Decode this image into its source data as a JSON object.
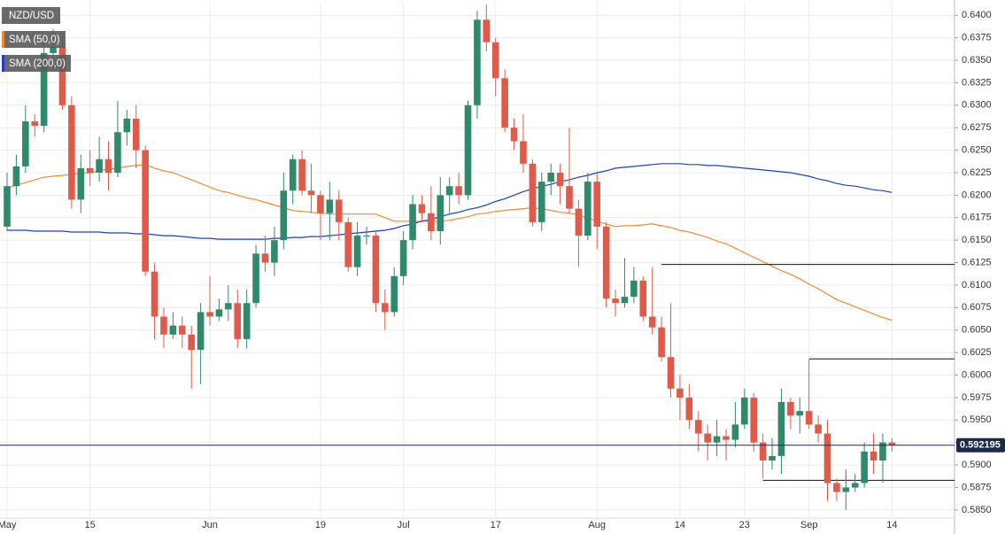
{
  "chart_data": {
    "type": "candlestick",
    "symbol": "NZD/USD",
    "categories": [
      "May",
      null,
      null,
      null,
      null,
      null,
      null,
      null,
      null,
      "15",
      null,
      null,
      null,
      null,
      null,
      null,
      null,
      null,
      null,
      null,
      null,
      null,
      "Jun",
      null,
      null,
      null,
      null,
      null,
      null,
      null,
      null,
      null,
      null,
      null,
      "19",
      null,
      null,
      null,
      null,
      null,
      null,
      null,
      null,
      "Jul",
      null,
      null,
      null,
      null,
      null,
      null,
      null,
      null,
      null,
      "17",
      null,
      null,
      null,
      null,
      null,
      null,
      null,
      null,
      null,
      null,
      "Aug",
      null,
      null,
      null,
      null,
      null,
      null,
      null,
      null,
      "14",
      null,
      null,
      null,
      null,
      null,
      null,
      "23",
      null,
      null,
      null,
      null,
      null,
      null,
      "Sep",
      null,
      null,
      null,
      null,
      null,
      null,
      null,
      null,
      "14"
    ],
    "open": [
      0.6165,
      0.621,
      0.6232,
      0.6282,
      0.6277,
      0.6358,
      0.6365,
      0.63,
      0.6195,
      0.623,
      0.6225,
      0.624,
      0.6225,
      0.627,
      0.6285,
      0.625,
      0.6115,
      0.6065,
      0.6045,
      0.6055,
      0.6045,
      0.6028,
      0.607,
      0.6065,
      0.6073,
      0.608,
      0.604,
      0.608,
      0.6135,
      0.6125,
      0.615,
      0.6205,
      0.624,
      0.6205,
      0.62,
      0.618,
      0.6195,
      0.617,
      0.612,
      0.6155,
      0.6155,
      0.608,
      0.607,
      0.611,
      0.615,
      0.619,
      0.618,
      0.616,
      0.62,
      0.621,
      0.62,
      0.63,
      0.6395,
      0.637,
      0.633,
      0.6275,
      0.626,
      0.6235,
      0.617,
      0.6215,
      0.6225,
      0.621,
      0.6185,
      0.6155,
      0.6215,
      0.6165,
      0.6085,
      0.608,
      0.6087,
      0.6105,
      0.6065,
      0.6053,
      0.602,
      0.5985,
      0.5975,
      0.595,
      0.5935,
      0.5925,
      0.5932,
      0.5928,
      0.5945,
      0.5975,
      0.5925,
      0.5905,
      0.591,
      0.597,
      0.5955,
      0.596,
      0.5945,
      0.5935,
      0.588,
      0.587,
      0.5875,
      0.588,
      0.5915,
      0.5905,
      0.5925
    ],
    "high": [
      0.6225,
      0.6245,
      0.63,
      0.629,
      0.637,
      0.6385,
      0.638,
      0.631,
      0.6245,
      0.625,
      0.6265,
      0.626,
      0.6305,
      0.6295,
      0.63,
      0.6255,
      0.6125,
      0.6075,
      0.607,
      0.6065,
      0.6055,
      0.608,
      0.611,
      0.6085,
      0.61,
      0.6095,
      0.6095,
      0.6145,
      0.6155,
      0.6165,
      0.6225,
      0.6245,
      0.625,
      0.6235,
      0.6205,
      0.6215,
      0.6205,
      0.6175,
      0.617,
      0.6165,
      0.616,
      0.6095,
      0.612,
      0.616,
      0.62,
      0.62,
      0.621,
      0.622,
      0.622,
      0.6225,
      0.6305,
      0.6405,
      0.6412,
      0.6375,
      0.634,
      0.6285,
      0.629,
      0.624,
      0.6225,
      0.6235,
      0.6235,
      0.6275,
      0.6195,
      0.6225,
      0.6225,
      0.617,
      0.6095,
      0.613,
      0.612,
      0.611,
      0.612,
      0.6065,
      0.608,
      0.6,
      0.599,
      0.596,
      0.5945,
      0.595,
      0.594,
      0.597,
      0.5985,
      0.598,
      0.5935,
      0.593,
      0.5985,
      0.5975,
      0.5975,
      0.6017,
      0.5955,
      0.595,
      0.5885,
      0.5895,
      0.589,
      0.5925,
      0.5935,
      0.5935,
      0.593
    ],
    "low": [
      0.616,
      0.62,
      0.6225,
      0.6265,
      0.627,
      0.634,
      0.6295,
      0.6185,
      0.618,
      0.621,
      0.6215,
      0.6205,
      0.622,
      0.6255,
      0.623,
      0.611,
      0.604,
      0.603,
      0.604,
      0.603,
      0.5985,
      0.599,
      0.6055,
      0.606,
      0.606,
      0.603,
      0.603,
      0.6075,
      0.6115,
      0.611,
      0.614,
      0.619,
      0.62,
      0.618,
      0.615,
      0.615,
      0.615,
      0.6115,
      0.611,
      0.6145,
      0.607,
      0.605,
      0.6065,
      0.61,
      0.614,
      0.617,
      0.615,
      0.6145,
      0.618,
      0.619,
      0.6195,
      0.6285,
      0.636,
      0.631,
      0.627,
      0.625,
      0.6225,
      0.6165,
      0.616,
      0.62,
      0.619,
      0.618,
      0.612,
      0.615,
      0.614,
      0.6075,
      0.6065,
      0.6075,
      0.608,
      0.606,
      0.6045,
      0.6015,
      0.5975,
      0.595,
      0.594,
      0.5915,
      0.5905,
      0.591,
      0.5905,
      0.592,
      0.594,
      0.5915,
      0.5885,
      0.5895,
      0.589,
      0.594,
      0.5935,
      0.594,
      0.5925,
      0.586,
      0.586,
      0.585,
      0.587,
      0.5875,
      0.589,
      0.588,
      0.5915
    ],
    "close": [
      0.621,
      0.6232,
      0.6282,
      0.6277,
      0.6358,
      0.6365,
      0.63,
      0.6195,
      0.623,
      0.6225,
      0.624,
      0.6225,
      0.627,
      0.6285,
      0.625,
      0.6115,
      0.6065,
      0.6045,
      0.6055,
      0.6045,
      0.6028,
      0.607,
      0.6065,
      0.6073,
      0.608,
      0.604,
      0.608,
      0.6135,
      0.6125,
      0.615,
      0.6205,
      0.624,
      0.6205,
      0.62,
      0.618,
      0.6195,
      0.617,
      0.612,
      0.6155,
      0.6155,
      0.608,
      0.607,
      0.611,
      0.615,
      0.619,
      0.618,
      0.616,
      0.62,
      0.621,
      0.62,
      0.63,
      0.6395,
      0.637,
      0.633,
      0.6275,
      0.626,
      0.6235,
      0.617,
      0.6215,
      0.6225,
      0.621,
      0.6185,
      0.6155,
      0.6215,
      0.6165,
      0.6085,
      0.608,
      0.6087,
      0.6105,
      0.6065,
      0.6053,
      0.602,
      0.5985,
      0.5975,
      0.595,
      0.5935,
      0.5925,
      0.5932,
      0.5928,
      0.5945,
      0.5975,
      0.5925,
      0.5905,
      0.591,
      0.597,
      0.5955,
      0.596,
      0.5945,
      0.5935,
      0.588,
      0.587,
      0.5875,
      0.588,
      0.5915,
      0.5905,
      0.5925,
      0.592195
    ],
    "up_color": "#2f8a6c",
    "down_color": "#e05a4a",
    "series": [
      {
        "name": "SMA (50,0)",
        "color": "#f08c30",
        "values": [
          0.6208,
          0.6211,
          0.6214,
          0.6217,
          0.622,
          0.6221,
          0.6222,
          0.6223,
          0.6224,
          0.6225,
          0.6227,
          0.6229,
          0.623,
          0.6232,
          0.6233,
          0.6234,
          0.623,
          0.6227,
          0.6225,
          0.6221,
          0.6217,
          0.6213,
          0.6209,
          0.6205,
          0.6203,
          0.62,
          0.6197,
          0.6195,
          0.6192,
          0.6189,
          0.6186,
          0.6183,
          0.6182,
          0.6181,
          0.618,
          0.6179,
          0.6179,
          0.6179,
          0.6179,
          0.6179,
          0.6179,
          0.6175,
          0.6171,
          0.6171,
          0.6171,
          0.6171,
          0.6171,
          0.6171,
          0.6172,
          0.6174,
          0.6176,
          0.6179,
          0.618,
          0.6182,
          0.6183,
          0.6184,
          0.6185,
          0.6186,
          0.6185,
          0.6183,
          0.6181,
          0.618,
          0.6178,
          0.6175,
          0.6171,
          0.6168,
          0.6165,
          0.6166,
          0.6166,
          0.6167,
          0.6168,
          0.6166,
          0.6164,
          0.6161,
          0.6159,
          0.6156,
          0.6153,
          0.6149,
          0.6146,
          0.6141,
          0.6136,
          0.6131,
          0.6126,
          0.6121,
          0.6116,
          0.6112,
          0.6107,
          0.6101,
          0.6096,
          0.609,
          0.6084,
          0.608,
          0.6076,
          0.6072,
          0.6068,
          0.6064,
          0.6061
        ]
      },
      {
        "name": "SMA (200,0)",
        "color": "#1e3fc8",
        "values": [
          0.6161,
          0.6161,
          0.6161,
          0.616,
          0.616,
          0.616,
          0.616,
          0.6159,
          0.6159,
          0.6159,
          0.6159,
          0.6158,
          0.6158,
          0.6158,
          0.6157,
          0.6157,
          0.6156,
          0.6155,
          0.6155,
          0.6154,
          0.6153,
          0.6152,
          0.6152,
          0.6151,
          0.6151,
          0.6151,
          0.6151,
          0.6151,
          0.6151,
          0.6152,
          0.6152,
          0.6153,
          0.6153,
          0.6154,
          0.6154,
          0.6155,
          0.6156,
          0.6157,
          0.6158,
          0.6159,
          0.616,
          0.6161,
          0.6163,
          0.6166,
          0.6168,
          0.6171,
          0.6173,
          0.6176,
          0.6179,
          0.6181,
          0.6184,
          0.6186,
          0.6189,
          0.6193,
          0.6196,
          0.62,
          0.6204,
          0.6207,
          0.621,
          0.6212,
          0.6215,
          0.6217,
          0.622,
          0.6222,
          0.6225,
          0.6227,
          0.623,
          0.6231,
          0.6232,
          0.6233,
          0.6234,
          0.6235,
          0.6235,
          0.6235,
          0.6234,
          0.6234,
          0.6233,
          0.6233,
          0.6232,
          0.6231,
          0.623,
          0.6229,
          0.6228,
          0.6227,
          0.6226,
          0.6225,
          0.6223,
          0.6221,
          0.6218,
          0.6216,
          0.6213,
          0.6211,
          0.621,
          0.6208,
          0.6206,
          0.6205,
          0.6203
        ]
      }
    ],
    "levels": [
      {
        "value": 0.6123,
        "start": 71
      },
      {
        "value": 0.6018,
        "start": 87
      },
      {
        "value": 0.5883,
        "start": 82
      }
    ],
    "last_price": 0.592195,
    "ylim": [
      0.5841,
      0.6415
    ],
    "yticks": [
      {
        "value": 0.585,
        "label": "0.5850"
      },
      {
        "value": 0.5875,
        "label": "0.5875"
      },
      {
        "value": 0.59,
        "label": "0.5900"
      },
      {
        "value": 0.5925,
        "label": "0.5925"
      },
      {
        "value": 0.595,
        "label": "0.5950"
      },
      {
        "value": 0.5975,
        "label": "0.5975"
      },
      {
        "value": 0.6,
        "label": "0.6000"
      },
      {
        "value": 0.6025,
        "label": "0.6025"
      },
      {
        "value": 0.605,
        "label": "0.6050"
      },
      {
        "value": 0.6075,
        "label": "0.6075"
      },
      {
        "value": 0.61,
        "label": "0.6100"
      },
      {
        "value": 0.6125,
        "label": "0.6125"
      },
      {
        "value": 0.615,
        "label": "0.6150"
      },
      {
        "value": 0.6175,
        "label": "0.6175"
      },
      {
        "value": 0.62,
        "label": "0.6200"
      },
      {
        "value": 0.6225,
        "label": "0.6225"
      },
      {
        "value": 0.625,
        "label": "0.6250"
      },
      {
        "value": 0.6275,
        "label": "0.6275"
      },
      {
        "value": 0.63,
        "label": "0.6300"
      },
      {
        "value": 0.6325,
        "label": "0.6325"
      },
      {
        "value": 0.635,
        "label": "0.6350"
      },
      {
        "value": 0.6375,
        "label": "0.6375"
      },
      {
        "value": 0.64,
        "label": "0.6400"
      }
    ],
    "grid": true
  }
}
